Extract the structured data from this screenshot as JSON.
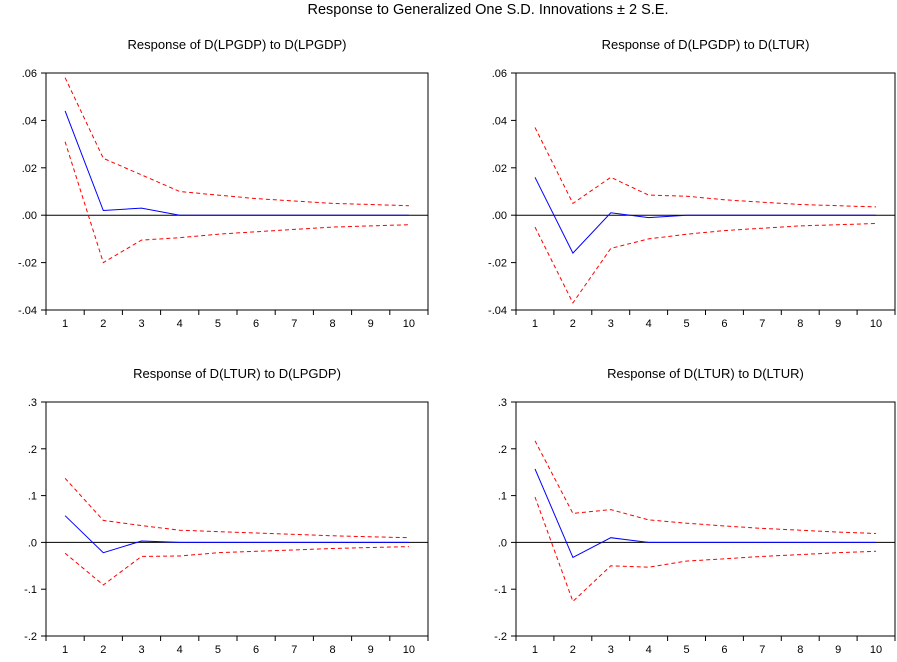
{
  "figure": {
    "title": "Response to Generalized One S.D. Innovations ± 2 S.E."
  },
  "colors": {
    "response": "#0000ff",
    "bands": "#ff0000",
    "axis": "#000000"
  },
  "chart_data": [
    {
      "type": "line",
      "title": "Response of D(LPGDP) to D(LPGDP)",
      "x": [
        1,
        2,
        3,
        4,
        5,
        6,
        7,
        8,
        9,
        10
      ],
      "ylim": [
        -0.04,
        0.06
      ],
      "yticks": [
        -0.04,
        -0.02,
        0.0,
        0.02,
        0.04,
        0.06
      ],
      "ytick_labels": [
        "-.04",
        "-.02",
        ".00",
        ".02",
        ".04",
        ".06"
      ],
      "grid": false,
      "series": [
        {
          "role": "response",
          "style": "solid",
          "values": [
            0.044,
            0.002,
            0.003,
            0.0,
            0.0,
            0.0,
            0.0,
            0.0,
            0.0,
            0.0
          ]
        },
        {
          "role": "upper",
          "style": "dashed",
          "values": [
            0.058,
            0.024,
            0.017,
            0.01,
            0.0085,
            0.007,
            0.006,
            0.005,
            0.0045,
            0.004
          ]
        },
        {
          "role": "lower",
          "style": "dashed",
          "values": [
            0.031,
            -0.02,
            -0.0105,
            -0.0095,
            -0.008,
            -0.007,
            -0.006,
            -0.005,
            -0.0045,
            -0.004
          ]
        }
      ]
    },
    {
      "type": "line",
      "title": "Response of D(LPGDP) to D(LTUR)",
      "x": [
        1,
        2,
        3,
        4,
        5,
        6,
        7,
        8,
        9,
        10
      ],
      "ylim": [
        -0.04,
        0.06
      ],
      "yticks": [
        -0.04,
        -0.02,
        0.0,
        0.02,
        0.04,
        0.06
      ],
      "ytick_labels": [
        "-.04",
        "-.02",
        ".00",
        ".02",
        ".04",
        ".06"
      ],
      "grid": false,
      "series": [
        {
          "role": "response",
          "style": "solid",
          "values": [
            0.016,
            -0.016,
            0.001,
            -0.001,
            0.0,
            0.0,
            0.0,
            0.0,
            0.0,
            0.0
          ]
        },
        {
          "role": "upper",
          "style": "dashed",
          "values": [
            0.037,
            0.005,
            0.016,
            0.0085,
            0.008,
            0.0065,
            0.0055,
            0.0045,
            0.004,
            0.0035
          ]
        },
        {
          "role": "lower",
          "style": "dashed",
          "values": [
            -0.005,
            -0.037,
            -0.014,
            -0.01,
            -0.008,
            -0.0065,
            -0.0055,
            -0.0045,
            -0.004,
            -0.0035
          ]
        }
      ]
    },
    {
      "type": "line",
      "title": "Response of D(LTUR) to D(LPGDP)",
      "x": [
        1,
        2,
        3,
        4,
        5,
        6,
        7,
        8,
        9,
        10
      ],
      "ylim": [
        -0.2,
        0.3
      ],
      "yticks": [
        -0.2,
        -0.1,
        0.0,
        0.1,
        0.2,
        0.3
      ],
      "ytick_labels": [
        "-.2",
        "-.1",
        ".0",
        ".1",
        ".2",
        ".3"
      ],
      "grid": false,
      "series": [
        {
          "role": "response",
          "style": "solid",
          "values": [
            0.057,
            -0.022,
            0.003,
            0.0,
            0.0,
            0.0,
            0.0,
            0.0,
            0.0,
            0.0
          ]
        },
        {
          "role": "upper",
          "style": "dashed",
          "values": [
            0.137,
            0.047,
            0.036,
            0.026,
            0.023,
            0.02,
            0.017,
            0.014,
            0.012,
            0.01
          ]
        },
        {
          "role": "lower",
          "style": "dashed",
          "values": [
            -0.023,
            -0.091,
            -0.03,
            -0.029,
            -0.022,
            -0.019,
            -0.016,
            -0.013,
            -0.011,
            -0.009
          ]
        }
      ]
    },
    {
      "type": "line",
      "title": "Response of D(LTUR) to D(LTUR)",
      "x": [
        1,
        2,
        3,
        4,
        5,
        6,
        7,
        8,
        9,
        10
      ],
      "ylim": [
        -0.2,
        0.3
      ],
      "yticks": [
        -0.2,
        -0.1,
        0.0,
        0.1,
        0.2,
        0.3
      ],
      "ytick_labels": [
        "-.2",
        "-.1",
        ".0",
        ".1",
        ".2",
        ".3"
      ],
      "grid": false,
      "series": [
        {
          "role": "response",
          "style": "solid",
          "values": [
            0.157,
            -0.032,
            0.01,
            0.0,
            0.0,
            0.0,
            0.0,
            0.0,
            0.0,
            0.0
          ]
        },
        {
          "role": "upper",
          "style": "dashed",
          "values": [
            0.217,
            0.062,
            0.07,
            0.048,
            0.041,
            0.035,
            0.03,
            0.026,
            0.022,
            0.019
          ]
        },
        {
          "role": "lower",
          "style": "dashed",
          "values": [
            0.097,
            -0.126,
            -0.05,
            -0.053,
            -0.04,
            -0.035,
            -0.03,
            -0.026,
            -0.022,
            -0.019
          ]
        }
      ]
    }
  ]
}
